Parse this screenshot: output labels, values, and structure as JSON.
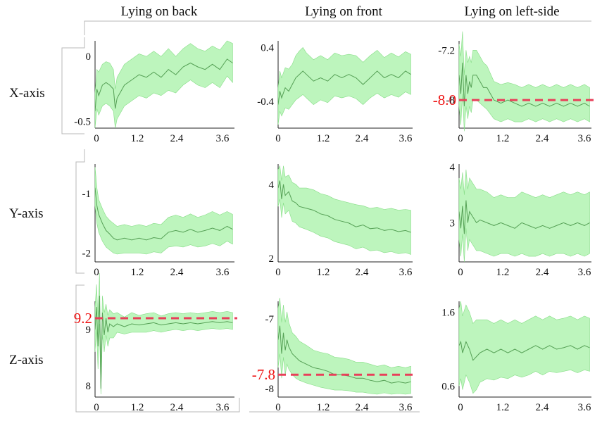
{
  "column_titles": [
    "Lying on back",
    "Lying on front",
    "Lying on left-side"
  ],
  "row_titles": [
    "X-axis",
    "Y-axis",
    "Z-axis"
  ],
  "colors": {
    "band": "#bdf5bd",
    "band_edge": "#86dd86",
    "mean": "#55a055",
    "reference": "#e8405a",
    "reference_text": "#ee1111"
  },
  "chart_data": [
    {
      "type": "area",
      "row": "X-axis",
      "column": "Lying on back",
      "x": [
        0,
        0.05,
        0.1,
        0.2,
        0.3,
        0.4,
        0.5,
        0.55,
        0.6,
        0.8,
        1.0,
        1.2,
        1.4,
        1.6,
        1.8,
        2.0,
        2.2,
        2.4,
        2.6,
        2.8,
        3.0,
        3.2,
        3.4,
        3.6,
        3.75
      ],
      "mean": [
        -0.42,
        -0.25,
        -0.3,
        -0.22,
        -0.2,
        -0.22,
        -0.25,
        -0.4,
        -0.32,
        -0.22,
        -0.18,
        -0.14,
        -0.16,
        -0.12,
        -0.16,
        -0.1,
        -0.14,
        -0.08,
        -0.05,
        -0.08,
        -0.1,
        -0.06,
        -0.1,
        -0.02,
        -0.05
      ],
      "lower": [
        -0.55,
        -0.4,
        -0.45,
        -0.38,
        -0.36,
        -0.38,
        -0.42,
        -0.55,
        -0.48,
        -0.38,
        -0.34,
        -0.3,
        -0.32,
        -0.28,
        -0.3,
        -0.26,
        -0.28,
        -0.22,
        -0.18,
        -0.22,
        -0.24,
        -0.2,
        -0.24,
        -0.15,
        -0.2
      ],
      "upper": [
        -0.28,
        -0.1,
        -0.12,
        -0.06,
        -0.04,
        -0.05,
        -0.1,
        -0.25,
        -0.16,
        -0.06,
        -0.02,
        0.02,
        0.0,
        0.04,
        0.0,
        0.06,
        0.0,
        0.06,
        0.1,
        0.06,
        0.04,
        0.08,
        0.05,
        0.12,
        0.1
      ],
      "xticks": [
        "0",
        "1.2",
        "2.4",
        "3.6"
      ],
      "yticks": [
        "0",
        "-0.5"
      ],
      "yticks_at": [
        0,
        -0.5
      ],
      "xlim": [
        0,
        3.8
      ],
      "ylim": [
        -0.55,
        0.12
      ],
      "reference_line": null
    },
    {
      "type": "area",
      "row": "X-axis",
      "column": "Lying on front",
      "x": [
        0,
        0.05,
        0.1,
        0.2,
        0.3,
        0.4,
        0.5,
        0.6,
        0.7,
        0.8,
        1.0,
        1.2,
        1.4,
        1.6,
        1.8,
        2.0,
        2.2,
        2.4,
        2.6,
        2.8,
        3.0,
        3.2,
        3.4,
        3.6,
        3.75
      ],
      "mean": [
        -0.45,
        -0.25,
        -0.35,
        -0.2,
        -0.25,
        -0.15,
        -0.05,
        0.0,
        0.05,
        0.0,
        -0.1,
        -0.05,
        -0.1,
        0.0,
        -0.05,
        0.0,
        -0.05,
        -0.15,
        -0.05,
        0.05,
        -0.05,
        0.0,
        -0.05,
        0.05,
        0.0
      ],
      "lower": [
        -0.75,
        -0.55,
        -0.62,
        -0.5,
        -0.52,
        -0.45,
        -0.38,
        -0.34,
        -0.3,
        -0.35,
        -0.45,
        -0.38,
        -0.42,
        -0.32,
        -0.35,
        -0.32,
        -0.36,
        -0.45,
        -0.35,
        -0.28,
        -0.35,
        -0.3,
        -0.34,
        -0.26,
        -0.3
      ],
      "upper": [
        -0.2,
        0.05,
        -0.05,
        0.1,
        0.08,
        0.15,
        0.28,
        0.35,
        0.4,
        0.32,
        0.22,
        0.28,
        0.22,
        0.32,
        0.28,
        0.3,
        0.28,
        0.18,
        0.28,
        0.36,
        0.25,
        0.32,
        0.26,
        0.34,
        0.3
      ],
      "xticks": [
        "0",
        "1.2",
        "2.4",
        "3.6"
      ],
      "yticks": [
        "0.4",
        "-0.4"
      ],
      "yticks_at": [
        0.4,
        -0.4
      ],
      "xlim": [
        0,
        3.8
      ],
      "ylim": [
        -0.8,
        0.5
      ],
      "reference_line": null
    },
    {
      "type": "area",
      "row": "X-axis",
      "column": "Lying on left-side",
      "x": [
        0,
        0.05,
        0.1,
        0.15,
        0.2,
        0.25,
        0.3,
        0.35,
        0.4,
        0.5,
        0.6,
        0.7,
        0.8,
        1.0,
        1.2,
        1.4,
        1.6,
        1.8,
        2.0,
        2.2,
        2.4,
        2.6,
        2.8,
        3.0,
        3.2,
        3.4,
        3.6,
        3.75
      ],
      "mean": [
        -7.6,
        -7.9,
        -7.4,
        -8.1,
        -7.6,
        -7.9,
        -7.7,
        -7.8,
        -7.6,
        -7.6,
        -7.7,
        -7.8,
        -7.8,
        -8.0,
        -8.05,
        -8.0,
        -8.05,
        -8.1,
        -8.05,
        -8.1,
        -8.05,
        -8.1,
        -8.05,
        -8.1,
        -8.05,
        -8.1,
        -8.05,
        -8.1
      ],
      "lower": [
        -8.1,
        -8.4,
        -7.9,
        -8.5,
        -8.1,
        -8.3,
        -8.1,
        -8.2,
        -8.0,
        -8.0,
        -8.05,
        -8.1,
        -8.15,
        -8.3,
        -8.35,
        -8.3,
        -8.35,
        -8.35,
        -8.3,
        -8.35,
        -8.3,
        -8.35,
        -8.3,
        -8.35,
        -8.3,
        -8.35,
        -8.3,
        -8.35
      ],
      "upper": [
        -7.1,
        -7.3,
        -6.9,
        -7.6,
        -7.2,
        -7.4,
        -7.3,
        -7.4,
        -7.2,
        -7.2,
        -7.3,
        -7.4,
        -7.45,
        -7.7,
        -7.75,
        -7.72,
        -7.75,
        -7.8,
        -7.75,
        -7.8,
        -7.75,
        -7.8,
        -7.75,
        -7.8,
        -7.75,
        -7.8,
        -7.75,
        -7.8
      ],
      "xticks": [
        "0",
        "1.2",
        "2.4",
        "3.6"
      ],
      "yticks": [
        "-7.2",
        "-8"
      ],
      "yticks_at": [
        -7.2,
        -8.0
      ],
      "xlim": [
        0,
        3.8
      ],
      "ylim": [
        -8.45,
        -7.05
      ],
      "reference_line": {
        "y": -8.0,
        "label": "-8.0"
      }
    },
    {
      "type": "area",
      "row": "Y-axis",
      "column": "Lying on back",
      "x": [
        0,
        0.05,
        0.1,
        0.2,
        0.3,
        0.4,
        0.5,
        0.6,
        0.8,
        1.0,
        1.2,
        1.4,
        1.6,
        1.8,
        2.0,
        2.2,
        2.4,
        2.6,
        2.8,
        3.0,
        3.2,
        3.4,
        3.6,
        3.75
      ],
      "mean": [
        -0.9,
        -1.2,
        -1.35,
        -1.5,
        -1.62,
        -1.68,
        -1.75,
        -1.78,
        -1.75,
        -1.78,
        -1.75,
        -1.78,
        -1.74,
        -1.76,
        -1.65,
        -1.62,
        -1.65,
        -1.6,
        -1.65,
        -1.62,
        -1.58,
        -1.62,
        -1.55,
        -1.6
      ],
      "lower": [
        -1.2,
        -1.5,
        -1.65,
        -1.8,
        -1.9,
        -1.95,
        -2.0,
        -2.02,
        -2.0,
        -2.0,
        -2.0,
        -2.02,
        -1.98,
        -2.0,
        -1.9,
        -1.88,
        -1.9,
        -1.86,
        -1.9,
        -1.88,
        -1.84,
        -1.88,
        -1.8,
        -1.85
      ],
      "upper": [
        -0.55,
        -0.9,
        -1.1,
        -1.25,
        -1.38,
        -1.45,
        -1.5,
        -1.55,
        -1.52,
        -1.55,
        -1.52,
        -1.55,
        -1.5,
        -1.52,
        -1.4,
        -1.36,
        -1.4,
        -1.34,
        -1.4,
        -1.36,
        -1.3,
        -1.36,
        -1.3,
        -1.35
      ],
      "xticks": [
        "0",
        "1.2",
        "2.4",
        "3.6"
      ],
      "yticks": [
        "-1",
        "-2"
      ],
      "yticks_at": [
        -1,
        -2
      ],
      "xlim": [
        0,
        3.8
      ],
      "ylim": [
        -2.15,
        -0.5
      ],
      "reference_line": null
    },
    {
      "type": "area",
      "row": "Y-axis",
      "column": "Lying on front",
      "x": [
        0,
        0.05,
        0.1,
        0.15,
        0.2,
        0.3,
        0.4,
        0.5,
        0.6,
        0.8,
        1.0,
        1.2,
        1.4,
        1.6,
        1.8,
        2.0,
        2.2,
        2.4,
        2.6,
        2.8,
        3.0,
        3.2,
        3.4,
        3.6,
        3.75
      ],
      "mean": [
        3.9,
        4.1,
        3.6,
        4.0,
        3.7,
        3.8,
        3.55,
        3.5,
        3.4,
        3.35,
        3.3,
        3.2,
        3.15,
        3.05,
        3.0,
        2.95,
        2.85,
        2.9,
        2.8,
        2.82,
        2.75,
        2.78,
        2.72,
        2.75,
        2.7
      ],
      "lower": [
        3.4,
        3.6,
        3.1,
        3.5,
        3.2,
        3.3,
        3.0,
        2.95,
        2.85,
        2.78,
        2.7,
        2.6,
        2.55,
        2.45,
        2.4,
        2.35,
        2.25,
        2.3,
        2.2,
        2.22,
        2.15,
        2.18,
        2.12,
        2.15,
        2.1
      ],
      "upper": [
        4.4,
        4.5,
        4.1,
        4.5,
        4.2,
        4.25,
        4.05,
        4.0,
        3.9,
        3.9,
        3.85,
        3.75,
        3.7,
        3.6,
        3.55,
        3.5,
        3.45,
        3.42,
        3.35,
        3.38,
        3.32,
        3.35,
        3.3,
        3.32,
        3.3
      ],
      "xticks": [
        "0",
        "1.2",
        "2.4",
        "3.6"
      ],
      "yticks": [
        "4",
        "2"
      ],
      "yticks_at": [
        4,
        2
      ],
      "xlim": [
        0,
        3.8
      ],
      "ylim": [
        1.9,
        4.55
      ],
      "reference_line": null
    },
    {
      "type": "area",
      "row": "Y-axis",
      "column": "Lying on left-side",
      "x": [
        0,
        0.05,
        0.1,
        0.15,
        0.2,
        0.25,
        0.3,
        0.4,
        0.5,
        0.6,
        0.8,
        1.0,
        1.2,
        1.4,
        1.6,
        1.8,
        2.0,
        2.2,
        2.4,
        2.6,
        2.8,
        3.0,
        3.2,
        3.4,
        3.6,
        3.75
      ],
      "mean": [
        3.2,
        2.9,
        3.3,
        2.8,
        3.4,
        3.0,
        3.2,
        3.1,
        3.0,
        3.05,
        3.0,
        2.95,
        3.0,
        2.95,
        2.9,
        3.0,
        2.95,
        2.9,
        2.95,
        2.9,
        2.95,
        3.0,
        2.95,
        3.0,
        2.95,
        3.0
      ],
      "lower": [
        2.7,
        2.4,
        2.8,
        2.3,
        2.9,
        2.5,
        2.7,
        2.6,
        2.5,
        2.5,
        2.45,
        2.4,
        2.45,
        2.45,
        2.4,
        2.45,
        2.4,
        2.4,
        2.45,
        2.4,
        2.45,
        2.45,
        2.4,
        2.45,
        2.4,
        2.45
      ],
      "upper": [
        3.8,
        3.6,
        3.9,
        3.5,
        3.95,
        3.6,
        3.8,
        3.7,
        3.6,
        3.6,
        3.55,
        3.45,
        3.5,
        3.45,
        3.45,
        3.55,
        3.5,
        3.45,
        3.5,
        3.45,
        3.5,
        3.55,
        3.5,
        3.55,
        3.5,
        3.55
      ],
      "xticks": [
        "0",
        "1.2",
        "2.4",
        "3.6"
      ],
      "yticks": [
        "4",
        "3"
      ],
      "yticks_at": [
        4,
        3
      ],
      "xlim": [
        0,
        3.8
      ],
      "ylim": [
        2.3,
        4.05
      ],
      "reference_line": null
    },
    {
      "type": "area",
      "row": "Z-axis",
      "column": "Lying on back",
      "x": [
        0,
        0.04,
        0.08,
        0.12,
        0.16,
        0.2,
        0.25,
        0.3,
        0.35,
        0.4,
        0.5,
        0.6,
        0.8,
        1.0,
        1.2,
        1.4,
        1.6,
        1.8,
        2.0,
        2.2,
        2.4,
        2.6,
        2.8,
        3.0,
        3.2,
        3.4,
        3.6,
        3.75
      ],
      "mean": [
        9.0,
        9.4,
        8.7,
        9.6,
        7.95,
        9.3,
        8.9,
        9.2,
        8.95,
        9.1,
        9.05,
        9.1,
        9.05,
        9.1,
        9.08,
        9.1,
        9.12,
        9.08,
        9.1,
        9.12,
        9.1,
        9.12,
        9.1,
        9.12,
        9.14,
        9.12,
        9.14,
        9.12
      ],
      "lower": [
        8.6,
        9.0,
        8.3,
        9.1,
        7.85,
        8.9,
        8.6,
        8.9,
        8.7,
        8.85,
        8.85,
        8.95,
        8.92,
        8.95,
        8.95,
        8.95,
        8.98,
        8.95,
        8.98,
        9.0,
        8.98,
        9.0,
        8.98,
        9.0,
        9.02,
        9.0,
        9.02,
        9.0
      ],
      "upper": [
        9.4,
        9.8,
        9.2,
        10.0,
        8.3,
        9.6,
        9.3,
        9.45,
        9.25,
        9.35,
        9.28,
        9.3,
        9.22,
        9.3,
        9.25,
        9.28,
        9.3,
        9.24,
        9.28,
        9.3,
        9.28,
        9.3,
        9.28,
        9.3,
        9.32,
        9.3,
        9.32,
        9.3
      ],
      "xticks": [
        "0",
        "1.2",
        "2.4",
        "3.6"
      ],
      "yticks": [
        "9",
        "8"
      ],
      "yticks_at": [
        9,
        8
      ],
      "xlim": [
        0,
        3.8
      ],
      "ylim": [
        7.8,
        9.5
      ],
      "reference_line": {
        "y": 9.2,
        "label": "9.2"
      }
    },
    {
      "type": "area",
      "row": "Z-axis",
      "column": "Lying on front",
      "x": [
        0,
        0.05,
        0.1,
        0.15,
        0.2,
        0.25,
        0.3,
        0.4,
        0.5,
        0.6,
        0.8,
        1.0,
        1.2,
        1.4,
        1.6,
        1.8,
        2.0,
        2.2,
        2.4,
        2.6,
        2.8,
        3.0,
        3.2,
        3.4,
        3.6,
        3.75
      ],
      "mean": [
        -7.3,
        -7.1,
        -7.5,
        -7.2,
        -7.45,
        -7.3,
        -7.4,
        -7.5,
        -7.55,
        -7.6,
        -7.65,
        -7.7,
        -7.72,
        -7.75,
        -7.8,
        -7.8,
        -7.82,
        -7.85,
        -7.85,
        -7.88,
        -7.9,
        -7.88,
        -7.92,
        -7.9,
        -7.92,
        -7.9
      ],
      "lower": [
        -7.7,
        -7.5,
        -7.85,
        -7.55,
        -7.8,
        -7.65,
        -7.72,
        -7.8,
        -7.85,
        -7.88,
        -7.92,
        -7.95,
        -7.98,
        -8.0,
        -8.02,
        -8.02,
        -8.03,
        -8.05,
        -8.05,
        -8.07,
        -8.08,
        -8.06,
        -8.08,
        -8.07,
        -8.08,
        -8.07
      ],
      "upper": [
        -6.85,
        -6.7,
        -7.05,
        -6.8,
        -7.05,
        -6.9,
        -7.05,
        -7.2,
        -7.25,
        -7.32,
        -7.38,
        -7.45,
        -7.48,
        -7.5,
        -7.55,
        -7.56,
        -7.58,
        -7.62,
        -7.62,
        -7.65,
        -7.68,
        -7.66,
        -7.7,
        -7.68,
        -7.7,
        -7.68
      ],
      "xticks": [
        "0",
        "1.2",
        "2.4",
        "3.6"
      ],
      "yticks": [
        "-7",
        "-8"
      ],
      "yticks_at": [
        -7,
        -8
      ],
      "xlim": [
        0,
        3.8
      ],
      "ylim": [
        -8.12,
        -6.75
      ],
      "reference_line": {
        "y": -7.8,
        "label": "-7.8"
      }
    },
    {
      "type": "area",
      "row": "Z-axis",
      "column": "Lying on left-side",
      "x": [
        0,
        0.05,
        0.1,
        0.2,
        0.3,
        0.4,
        0.5,
        0.6,
        0.8,
        1.0,
        1.2,
        1.4,
        1.6,
        1.8,
        2.0,
        2.2,
        2.4,
        2.6,
        2.8,
        3.0,
        3.2,
        3.4,
        3.6,
        3.75
      ],
      "mean": [
        1.15,
        1.2,
        1.05,
        1.2,
        1.1,
        0.95,
        1.0,
        1.05,
        1.1,
        1.05,
        1.1,
        1.05,
        1.1,
        1.05,
        1.1,
        1.15,
        1.1,
        1.15,
        1.1,
        1.12,
        1.15,
        1.1,
        1.15,
        1.12
      ],
      "lower": [
        0.6,
        0.7,
        0.55,
        0.75,
        0.65,
        0.5,
        0.55,
        0.65,
        0.7,
        0.68,
        0.72,
        0.7,
        0.75,
        0.72,
        0.75,
        0.8,
        0.75,
        0.8,
        0.78,
        0.8,
        0.82,
        0.78,
        0.82,
        0.8
      ],
      "upper": [
        1.65,
        1.75,
        1.55,
        1.7,
        1.6,
        1.45,
        1.5,
        1.5,
        1.5,
        1.45,
        1.5,
        1.45,
        1.5,
        1.45,
        1.5,
        1.55,
        1.5,
        1.55,
        1.5,
        1.52,
        1.55,
        1.5,
        1.55,
        1.52
      ],
      "xticks": [
        "0",
        "1.2",
        "2.4",
        "3.6"
      ],
      "yticks": [
        "1.6",
        "0.6"
      ],
      "yticks_at": [
        1.6,
        0.6
      ],
      "xlim": [
        0,
        3.8
      ],
      "ylim": [
        0.45,
        1.75
      ],
      "reference_line": null
    }
  ]
}
